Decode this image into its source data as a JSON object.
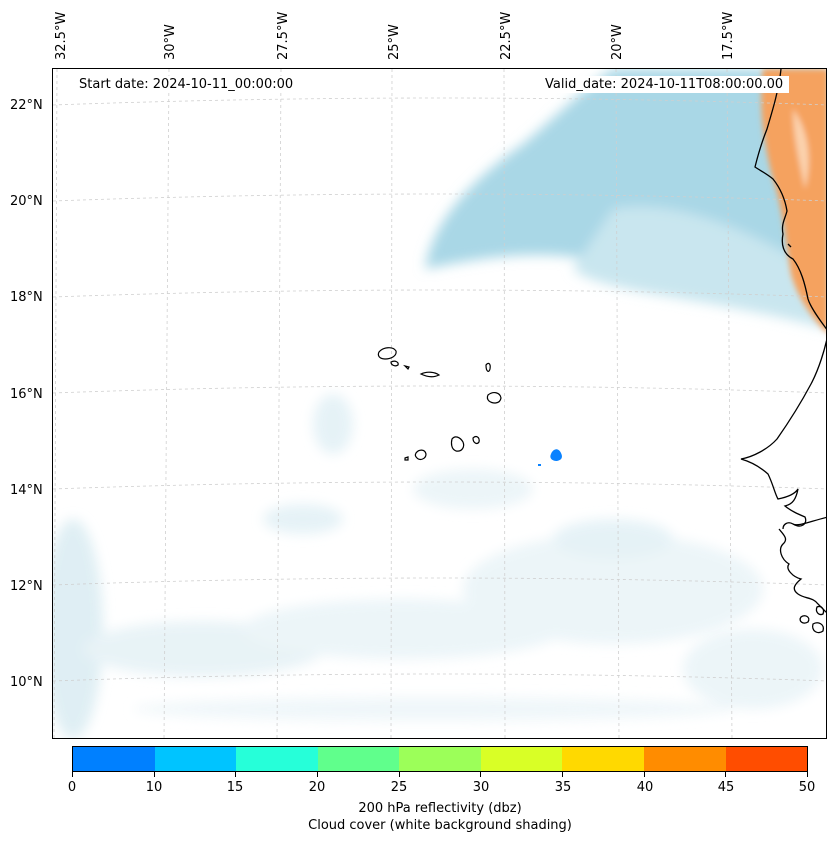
{
  "map": {
    "start_date": "Start date: 2024-10-11_00:00:00",
    "valid_date": "Valid_date: 2024-10-11T08:00:00.00",
    "lon_labels": [
      "32.5°W",
      "30°W",
      "27.5°W",
      "25°W",
      "22.5°W",
      "20°W",
      "17.5°W"
    ],
    "lat_labels": [
      "22°N",
      "20°N",
      "18°N",
      "16°N",
      "14°N",
      "12°N",
      "10°N"
    ],
    "colors": {
      "cloud": "#a9d7e6",
      "cloud_faint": "#e3f1f6",
      "high_reflectivity": "#f5a25f",
      "reflectivity_cell": "#0a82ff",
      "coastline": "#000000",
      "grid": "#cfcfcf"
    }
  },
  "colorbar": {
    "ticks": [
      "0",
      "10",
      "15",
      "20",
      "25",
      "30",
      "35",
      "40",
      "45",
      "50"
    ],
    "colors": [
      "#0080ff",
      "#00c4ff",
      "#26ffd9",
      "#60ff8c",
      "#9cff59",
      "#d9ff26",
      "#ffd900",
      "#ff8c00",
      "#ff4d00"
    ],
    "title": "200 hPa reflectivity (dbz)",
    "subtitle": "Cloud cover (white background shading)"
  }
}
